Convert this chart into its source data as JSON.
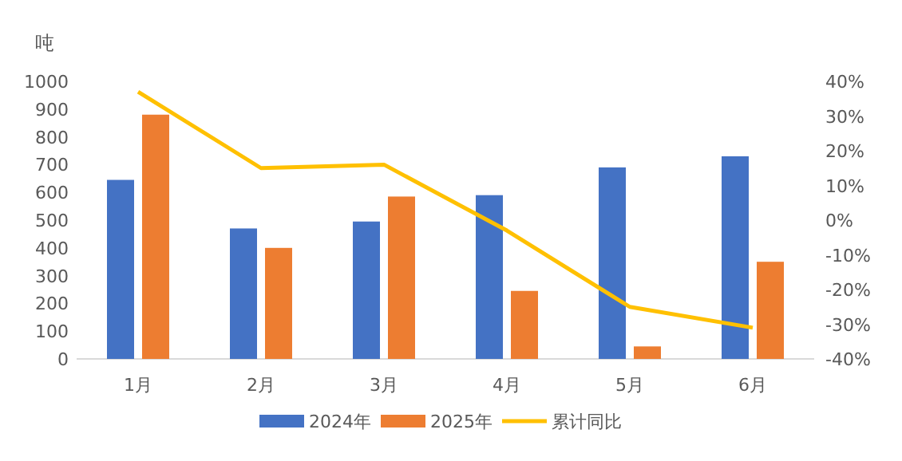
{
  "chart_data": {
    "type": "bar",
    "ylabel": "吨",
    "categories": [
      "1月",
      "2月",
      "3月",
      "4月",
      "5月",
      "6月"
    ],
    "series": [
      {
        "name": "2024年",
        "color": "#4472c4",
        "values": [
          645,
          470,
          495,
          590,
          690,
          730
        ]
      },
      {
        "name": "2025年",
        "color": "#ed7d31",
        "values": [
          880,
          400,
          585,
          245,
          45,
          350
        ]
      },
      {
        "name": "累计同比",
        "type": "line",
        "axis": "y2",
        "color": "#ffc000",
        "values": [
          37,
          15,
          16,
          -3,
          -25,
          -31
        ]
      }
    ],
    "ylim": [
      0,
      1000
    ],
    "yticks": [
      0,
      100,
      200,
      300,
      400,
      500,
      600,
      700,
      800,
      900,
      1000
    ],
    "y2lim": [
      -40,
      40
    ],
    "y2ticks": [
      {
        "value": -40,
        "label": "-40%"
      },
      {
        "value": -30,
        "label": "-30%"
      },
      {
        "value": -20,
        "label": "-20%"
      },
      {
        "value": -10,
        "label": "-10%"
      },
      {
        "value": 0,
        "label": "0%"
      },
      {
        "value": 10,
        "label": "10%"
      },
      {
        "value": 20,
        "label": "20%"
      },
      {
        "value": 30,
        "label": "30%"
      },
      {
        "value": 40,
        "label": "40%"
      }
    ],
    "grid": false,
    "legend": "bottom",
    "marker": "none"
  }
}
